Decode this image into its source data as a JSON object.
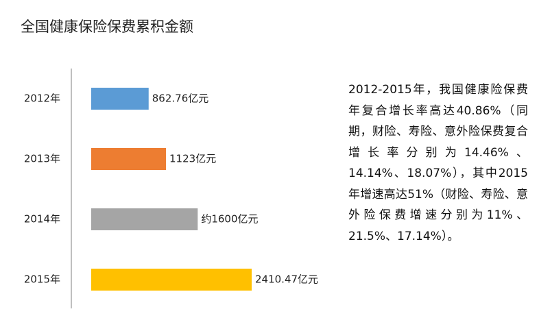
{
  "chart_data": {
    "type": "bar",
    "orientation": "horizontal",
    "title": "全国健康保险保费累积金额",
    "categories": [
      "2012年",
      "2013年",
      "2014年",
      "2015年"
    ],
    "values": [
      862.76,
      1123,
      1600,
      2410.47
    ],
    "value_labels": [
      "862.76亿元",
      "1123亿元",
      "约1600亿元",
      "2410.47亿元"
    ],
    "colors": [
      "#5b9bd5",
      "#ed7d31",
      "#a5a5a5",
      "#ffc000"
    ]
  },
  "paragraph": "2012-2015年，我国健康险保费年复合增长率高达40.86%（同期，财险、寿险、意外险保费复合增长率分别为14.46%、14.14%、18.07%），其中2015年增速高达51%（财险、寿险、意外险保费增速分别为11%、21.5%、17.14%）。"
}
